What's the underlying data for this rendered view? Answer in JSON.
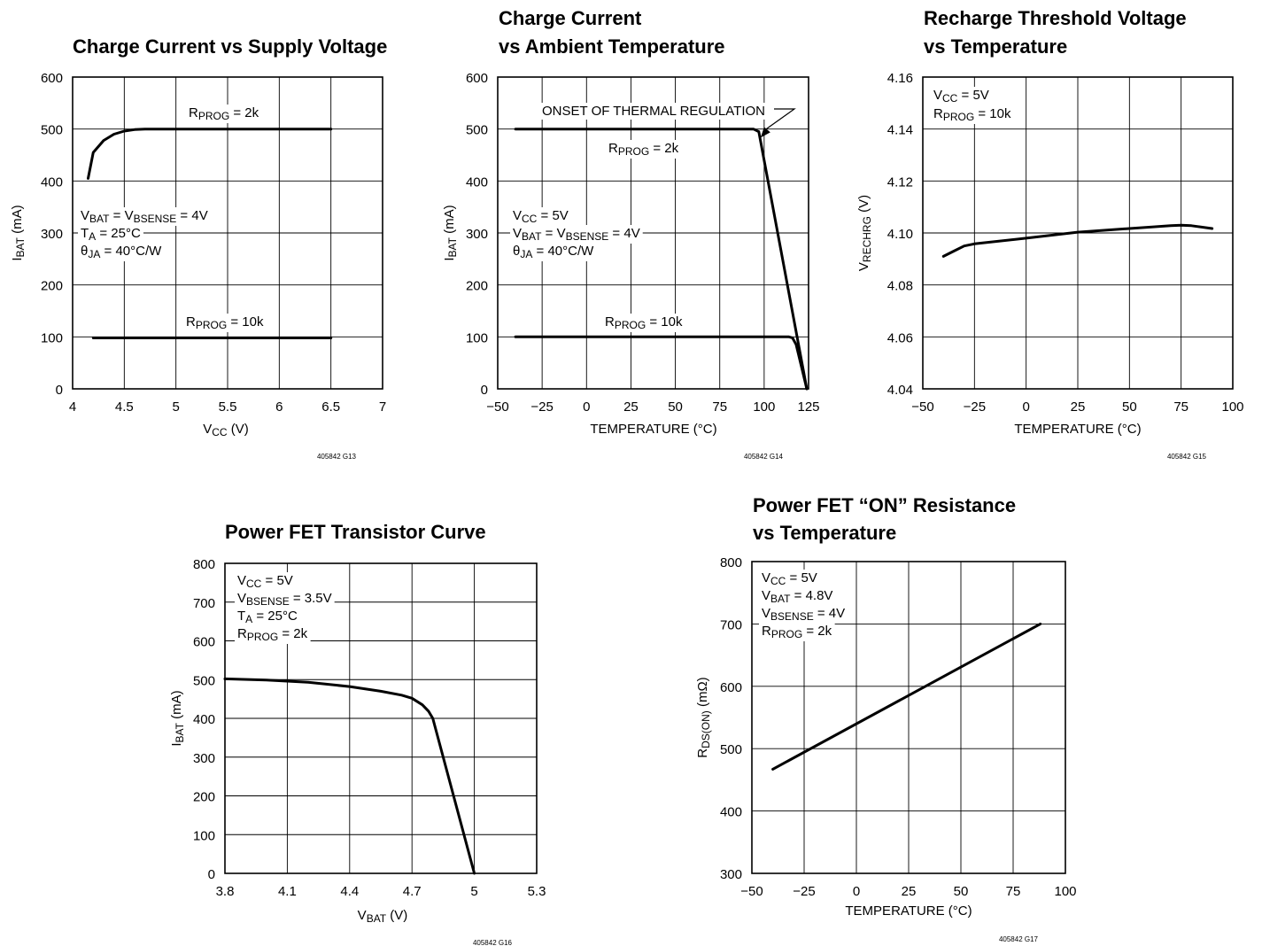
{
  "chart_data": [
    {
      "id": "g13",
      "type": "line",
      "title": [
        "Charge Current vs Supply Voltage"
      ],
      "xlabel": {
        "main": "V",
        "sub": "CC",
        "post": " (V)"
      },
      "ylabel": {
        "main": "I",
        "sub": "BAT",
        "post": " (mA)"
      },
      "xlim": [
        4,
        7
      ],
      "ylim": [
        0,
        600
      ],
      "xticks": [
        4,
        4.5,
        5,
        5.5,
        6,
        6.5,
        7
      ],
      "xtick_labels": [
        "4",
        "4.5",
        "5",
        "5.5",
        "6",
        "6.5",
        "7"
      ],
      "yticks": [
        0,
        100,
        200,
        300,
        400,
        500,
        600
      ],
      "ytick_labels": [
        "0",
        "100",
        "200",
        "300",
        "400",
        "500",
        "600"
      ],
      "grid": true,
      "series": [
        {
          "x": [
            4.15,
            4.2,
            4.3,
            4.4,
            4.5,
            4.6,
            4.7,
            5.0,
            5.5,
            6.0,
            6.5
          ],
          "y": [
            405,
            455,
            478,
            490,
            496,
            499,
            500,
            500,
            500,
            500,
            500
          ]
        },
        {
          "x": [
            4.2,
            5.0,
            5.5,
            6.0,
            6.5
          ],
          "y": [
            98,
            98,
            98,
            98,
            98
          ]
        }
      ],
      "annotations": [
        {
          "lines": [
            [
              {
                "t": "R"
              },
              {
                "t": "PROG",
                "sub": true
              },
              {
                "t": " = 2k"
              }
            ]
          ]
        },
        {
          "lines": [
            [
              {
                "t": "R"
              },
              {
                "t": "PROG",
                "sub": true
              },
              {
                "t": " = 10k"
              }
            ]
          ]
        },
        {
          "lines": [
            [
              {
                "t": "V"
              },
              {
                "t": "BAT",
                "sub": true
              },
              {
                "t": " = V"
              },
              {
                "t": "BSENSE",
                "sub": true
              },
              {
                "t": " = 4V"
              }
            ],
            [
              {
                "t": "T"
              },
              {
                "t": "A",
                "sub": true
              },
              {
                "t": " = 25°C"
              }
            ],
            [
              {
                "t": "θ"
              },
              {
                "t": "JA",
                "sub": true
              },
              {
                "t": " = 40°C/W"
              }
            ]
          ]
        }
      ],
      "code": "405842 G13"
    },
    {
      "id": "g14",
      "type": "line",
      "title": [
        "Charge Current",
        "vs Ambient Temperature"
      ],
      "xlabel": {
        "main": "TEMPERATURE (°C)",
        "sub": "",
        "post": ""
      },
      "ylabel": {
        "main": "I",
        "sub": "BAT",
        "post": " (mA)"
      },
      "xlim": [
        -50,
        125
      ],
      "ylim": [
        0,
        600
      ],
      "xticks": [
        -50,
        -25,
        0,
        25,
        50,
        75,
        100,
        125
      ],
      "xtick_labels": [
        "−50",
        "−25",
        "0",
        "25",
        "50",
        "75",
        "100",
        "125"
      ],
      "yticks": [
        0,
        100,
        200,
        300,
        400,
        500,
        600
      ],
      "ytick_labels": [
        "0",
        "100",
        "200",
        "300",
        "400",
        "500",
        "600"
      ],
      "grid": true,
      "series": [
        {
          "x": [
            -40,
            0,
            50,
            94,
            97,
            124
          ],
          "y": [
            500,
            500,
            500,
            500,
            495,
            0
          ]
        },
        {
          "x": [
            -40,
            0,
            50,
            100,
            114,
            116,
            118,
            124
          ],
          "y": [
            100,
            100,
            100,
            100,
            100,
            98,
            85,
            0
          ]
        }
      ],
      "annotations": [
        {
          "lines": [
            [
              {
                "t": "ONSET OF THERMAL REGULATION"
              }
            ]
          ]
        },
        {
          "lines": [
            [
              {
                "t": "R"
              },
              {
                "t": "PROG",
                "sub": true
              },
              {
                "t": " = 2k"
              }
            ]
          ]
        },
        {
          "lines": [
            [
              {
                "t": "R"
              },
              {
                "t": "PROG",
                "sub": true
              },
              {
                "t": " = 10k"
              }
            ]
          ]
        },
        {
          "lines": [
            [
              {
                "t": "V"
              },
              {
                "t": "CC",
                "sub": true
              },
              {
                "t": " = 5V"
              }
            ],
            [
              {
                "t": "V"
              },
              {
                "t": "BAT",
                "sub": true
              },
              {
                "t": " = V"
              },
              {
                "t": "BSENSE",
                "sub": true
              },
              {
                "t": " = 4V"
              }
            ],
            [
              {
                "t": "θ"
              },
              {
                "t": "JA",
                "sub": true
              },
              {
                "t": " = 40°C/W"
              }
            ]
          ]
        }
      ],
      "code": "405842 G14"
    },
    {
      "id": "g15",
      "type": "line",
      "title": [
        "Recharge Threshold Voltage",
        "vs Temperature"
      ],
      "xlabel": {
        "main": "TEMPERATURE (°C)",
        "sub": "",
        "post": ""
      },
      "ylabel": {
        "main": "V",
        "sub": "RECHRG",
        "post": " (V)"
      },
      "xlim": [
        -50,
        100
      ],
      "ylim": [
        4.04,
        4.16
      ],
      "xticks": [
        -50,
        -25,
        0,
        25,
        50,
        75,
        100
      ],
      "xtick_labels": [
        "−50",
        "−25",
        "0",
        "25",
        "50",
        "75",
        "100"
      ],
      "yticks": [
        4.04,
        4.06,
        4.08,
        4.1,
        4.12,
        4.14,
        4.16
      ],
      "ytick_labels": [
        "4.04",
        "4.06",
        "4.08",
        "4.10",
        "4.12",
        "4.14",
        "4.16"
      ],
      "grid": true,
      "series": [
        {
          "x": [
            -40,
            -35,
            -30,
            -25,
            0,
            25,
            50,
            70,
            75,
            80,
            90
          ],
          "y": [
            4.091,
            4.093,
            4.095,
            4.0958,
            4.098,
            4.1003,
            4.1017,
            4.1028,
            4.103,
            4.1028,
            4.1017
          ]
        }
      ],
      "annotations": [
        {
          "lines": [
            [
              {
                "t": "V"
              },
              {
                "t": "CC",
                "sub": true
              },
              {
                "t": " = 5V"
              }
            ],
            [
              {
                "t": "R"
              },
              {
                "t": "PROG",
                "sub": true
              },
              {
                "t": " = 10k"
              }
            ]
          ]
        }
      ],
      "code": "405842 G15"
    },
    {
      "id": "g16",
      "type": "line",
      "title": [
        "Power FET Transistor Curve"
      ],
      "xlabel": {
        "main": "V",
        "sub": "BAT",
        "post": " (V)"
      },
      "ylabel": {
        "main": "I",
        "sub": "BAT",
        "post": " (mA)"
      },
      "xlim": [
        3.8,
        5.3
      ],
      "ylim": [
        0,
        800
      ],
      "xticks": [
        3.8,
        4.1,
        4.4,
        4.7,
        5.0,
        5.3
      ],
      "xtick_labels": [
        "3.8",
        "4.1",
        "4.4",
        "4.7",
        "5",
        "5.3"
      ],
      "yticks": [
        0,
        100,
        200,
        300,
        400,
        500,
        600,
        700,
        800
      ],
      "ytick_labels": [
        "0",
        "100",
        "200",
        "300",
        "400",
        "500",
        "600",
        "700",
        "800"
      ],
      "grid": true,
      "series": [
        {
          "x": [
            3.8,
            4.0,
            4.2,
            4.4,
            4.55,
            4.65,
            4.7,
            4.75,
            4.78,
            4.8,
            5.0
          ],
          "y": [
            502,
            499,
            493,
            482,
            470,
            460,
            452,
            435,
            418,
            400,
            0
          ]
        }
      ],
      "annotations": [
        {
          "lines": [
            [
              {
                "t": "V"
              },
              {
                "t": "CC",
                "sub": true
              },
              {
                "t": " = 5V"
              }
            ],
            [
              {
                "t": "V"
              },
              {
                "t": "BSENSE",
                "sub": true
              },
              {
                "t": " = 3.5V"
              }
            ],
            [
              {
                "t": "T"
              },
              {
                "t": "A",
                "sub": true
              },
              {
                "t": " = 25°C"
              }
            ],
            [
              {
                "t": "R"
              },
              {
                "t": "PROG",
                "sub": true
              },
              {
                "t": " = 2k"
              }
            ]
          ]
        }
      ],
      "code": "405842 G16"
    },
    {
      "id": "g17",
      "type": "line",
      "title": [
        "Power FET “ON” Resistance",
        "vs Temperature"
      ],
      "xlabel": {
        "main": "TEMPERATURE (°C)",
        "sub": "",
        "post": ""
      },
      "ylabel": {
        "main": "R",
        "sub": "DS(ON)",
        "post": " (mΩ)"
      },
      "xlim": [
        -50,
        100
      ],
      "ylim": [
        300,
        800
      ],
      "xticks": [
        -50,
        -25,
        0,
        25,
        50,
        75,
        100
      ],
      "xtick_labels": [
        "−50",
        "−25",
        "0",
        "25",
        "50",
        "75",
        "100"
      ],
      "yticks": [
        300,
        400,
        500,
        600,
        700,
        800
      ],
      "ytick_labels": [
        "300",
        "400",
        "500",
        "600",
        "700",
        "800"
      ],
      "grid": true,
      "series": [
        {
          "x": [
            -40,
            88
          ],
          "y": [
            467,
            700
          ]
        }
      ],
      "annotations": [
        {
          "lines": [
            [
              {
                "t": "V"
              },
              {
                "t": "CC",
                "sub": true
              },
              {
                "t": " = 5V"
              }
            ],
            [
              {
                "t": "V"
              },
              {
                "t": "BAT",
                "sub": true
              },
              {
                "t": " = 4.8V"
              }
            ],
            [
              {
                "t": "V"
              },
              {
                "t": "BSENSE",
                "sub": true
              },
              {
                "t": " = 4V"
              }
            ],
            [
              {
                "t": "R"
              },
              {
                "t": "PROG",
                "sub": true
              },
              {
                "t": " = 2k"
              }
            ]
          ]
        }
      ],
      "code": "405842 G17"
    }
  ]
}
